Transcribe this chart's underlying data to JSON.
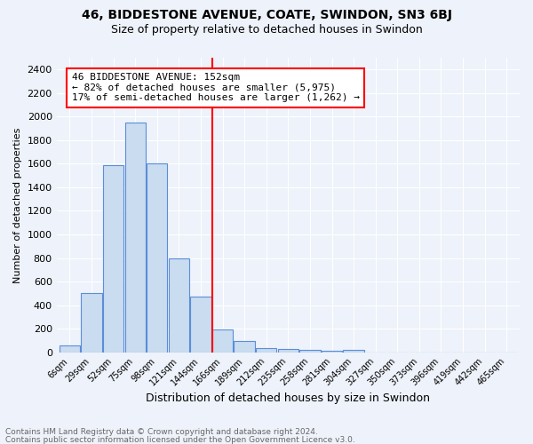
{
  "title": "46, BIDDESTONE AVENUE, COATE, SWINDON, SN3 6BJ",
  "subtitle": "Size of property relative to detached houses in Swindon",
  "xlabel": "Distribution of detached houses by size in Swindon",
  "ylabel": "Number of detached properties",
  "categories": [
    "6sqm",
    "29sqm",
    "52sqm",
    "75sqm",
    "98sqm",
    "121sqm",
    "144sqm",
    "166sqm",
    "189sqm",
    "212sqm",
    "235sqm",
    "258sqm",
    "281sqm",
    "304sqm",
    "327sqm",
    "350sqm",
    "373sqm",
    "396sqm",
    "419sqm",
    "442sqm",
    "465sqm"
  ],
  "values": [
    55,
    500,
    1590,
    1950,
    1600,
    800,
    470,
    195,
    95,
    35,
    30,
    20,
    15,
    20,
    0,
    0,
    0,
    0,
    0,
    0,
    0
  ],
  "bar_color": "#c9dcf0",
  "bar_edge_color": "#5b8dd9",
  "annotation_box_text": "46 BIDDESTONE AVENUE: 152sqm\n← 82% of detached houses are smaller (5,975)\n17% of semi-detached houses are larger (1,262) →",
  "ylim": [
    0,
    2500
  ],
  "yticks": [
    0,
    200,
    400,
    600,
    800,
    1000,
    1200,
    1400,
    1600,
    1800,
    2000,
    2200,
    2400
  ],
  "red_line_x": 6.52,
  "footer_line1": "Contains HM Land Registry data © Crown copyright and database right 2024.",
  "footer_line2": "Contains public sector information licensed under the Open Government Licence v3.0.",
  "bg_color": "#eef2fa",
  "grid_color": "#ffffff",
  "title_fontsize": 10,
  "subtitle_fontsize": 9,
  "annotation_fontsize": 8,
  "ylabel_fontsize": 8,
  "xlabel_fontsize": 9,
  "xtick_fontsize": 7,
  "ytick_fontsize": 8
}
